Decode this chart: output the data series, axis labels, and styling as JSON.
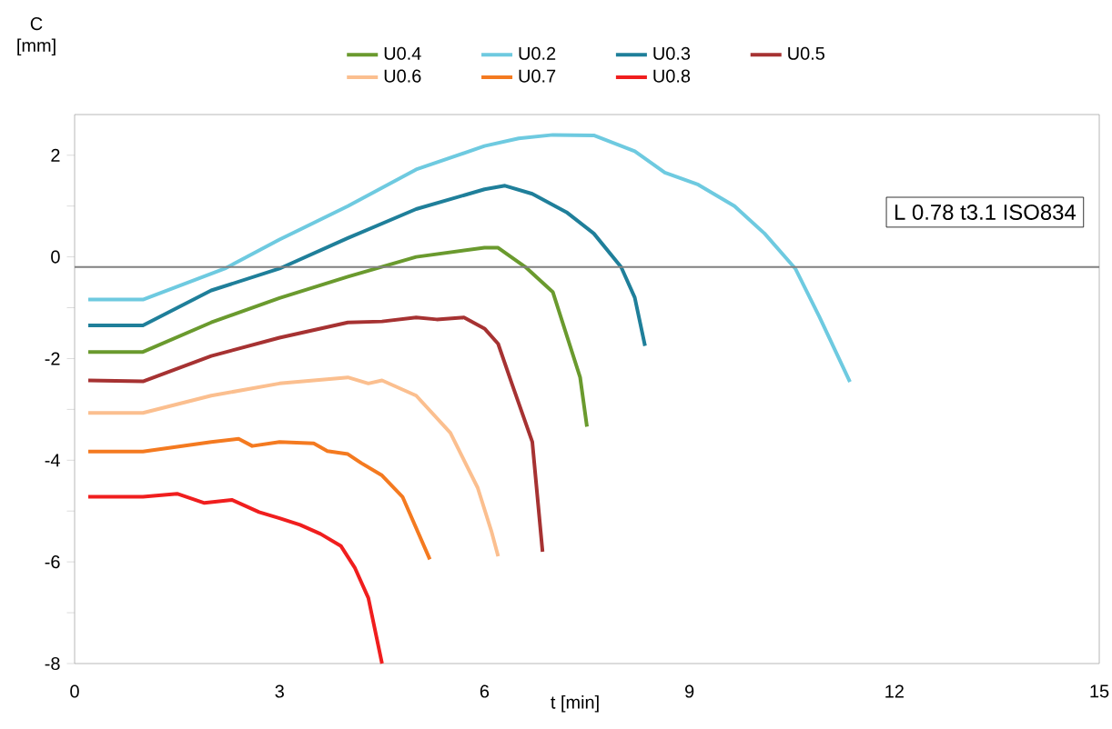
{
  "chart_data": {
    "type": "line",
    "xlabel": "t [min]",
    "ylabel": "C [mm]",
    "xlim": [
      0,
      15
    ],
    "xticks": [
      0,
      3,
      6,
      9,
      12,
      15
    ],
    "ylim": [
      -8,
      2.8
    ],
    "yticks": [
      -8,
      {
        "value": -7,
        "label": null
      },
      -6,
      {
        "value": -5,
        "label": null
      },
      -4,
      {
        "value": -3,
        "label": null
      },
      -2,
      {
        "value": -1,
        "label": null
      },
      0,
      {
        "value": 1,
        "label": null
      },
      2
    ],
    "legend": "top",
    "marker": "none",
    "line_style": "solid",
    "grid": false,
    "ref_lines": [
      {
        "axis": "y",
        "value": -0.2,
        "color": "#808080"
      }
    ],
    "annotations": [
      "L 0.78 t3.1 ISO834"
    ],
    "series": [
      {
        "name": "U0.4",
        "color": "#6a9a2e",
        "x": [
          0.2,
          1,
          2,
          3,
          4,
          5,
          6,
          6.2,
          6.6,
          7,
          7.2,
          7.4,
          7.5
        ],
        "values": [
          -1.87,
          -1.87,
          -1.29,
          -0.81,
          -0.39,
          0,
          0.18,
          0.18,
          -0.2,
          -0.69,
          -1.53,
          -2.37,
          -3.34
        ]
      },
      {
        "name": "U0.2",
        "color": "#6ecae0",
        "x": [
          0.2,
          1,
          2.2,
          3,
          4,
          5,
          6,
          6.5,
          7,
          7.6,
          8.2,
          8.64,
          9.13,
          9.66,
          10.1,
          10.55,
          10.9,
          11.35
        ],
        "values": [
          -0.84,
          -0.84,
          -0.23,
          0.34,
          1.0,
          1.72,
          2.18,
          2.33,
          2.4,
          2.39,
          2.08,
          1.66,
          1.42,
          1.0,
          0.46,
          -0.23,
          -1.17,
          -2.46
        ]
      },
      {
        "name": "U0.3",
        "color": "#1f7f9a",
        "x": [
          0.2,
          1,
          2,
          3,
          4,
          5,
          6,
          6.3,
          6.7,
          7.2,
          7.6,
          8,
          8.2,
          8.35
        ],
        "values": [
          -1.35,
          -1.35,
          -0.66,
          -0.23,
          0.37,
          0.94,
          1.33,
          1.4,
          1.24,
          0.88,
          0.46,
          -0.2,
          -0.8,
          -1.75
        ]
      },
      {
        "name": "U0.5",
        "color": "#a63232",
        "x": [
          0.2,
          1,
          2,
          3,
          4,
          4.5,
          5,
          5.3,
          5.7,
          6,
          6.2,
          6.4,
          6.7,
          6.85
        ],
        "values": [
          -2.43,
          -2.45,
          -1.95,
          -1.59,
          -1.29,
          -1.27,
          -1.19,
          -1.23,
          -1.19,
          -1.41,
          -1.71,
          -2.49,
          -3.64,
          -5.8
        ]
      },
      {
        "name": "U0.6",
        "color": "#fbbf8f",
        "x": [
          0.2,
          1,
          2,
          3,
          3.5,
          4,
          4.3,
          4.5,
          5,
          5.5,
          5.9,
          6.1,
          6.2
        ],
        "values": [
          -3.07,
          -3.07,
          -2.73,
          -2.49,
          -2.43,
          -2.37,
          -2.49,
          -2.43,
          -2.73,
          -3.46,
          -4.54,
          -5.39,
          -5.89
        ]
      },
      {
        "name": "U0.7",
        "color": "#f47a20",
        "x": [
          0.2,
          1,
          2,
          2.4,
          2.6,
          3,
          3.5,
          3.7,
          4,
          4.2,
          4.5,
          4.8,
          5.2
        ],
        "values": [
          -3.83,
          -3.83,
          -3.64,
          -3.58,
          -3.72,
          -3.64,
          -3.67,
          -3.82,
          -3.88,
          -4.06,
          -4.3,
          -4.72,
          -5.95
        ]
      },
      {
        "name": "U0.8",
        "color": "#f01e1e",
        "x": [
          0.2,
          1,
          1.5,
          1.9,
          2.3,
          2.7,
          3,
          3.3,
          3.6,
          3.9,
          4.1,
          4.3,
          4.5
        ],
        "values": [
          -4.72,
          -4.72,
          -4.66,
          -4.84,
          -4.78,
          -5.02,
          -5.14,
          -5.27,
          -5.45,
          -5.69,
          -6.11,
          -6.71,
          -8.0
        ]
      }
    ]
  }
}
